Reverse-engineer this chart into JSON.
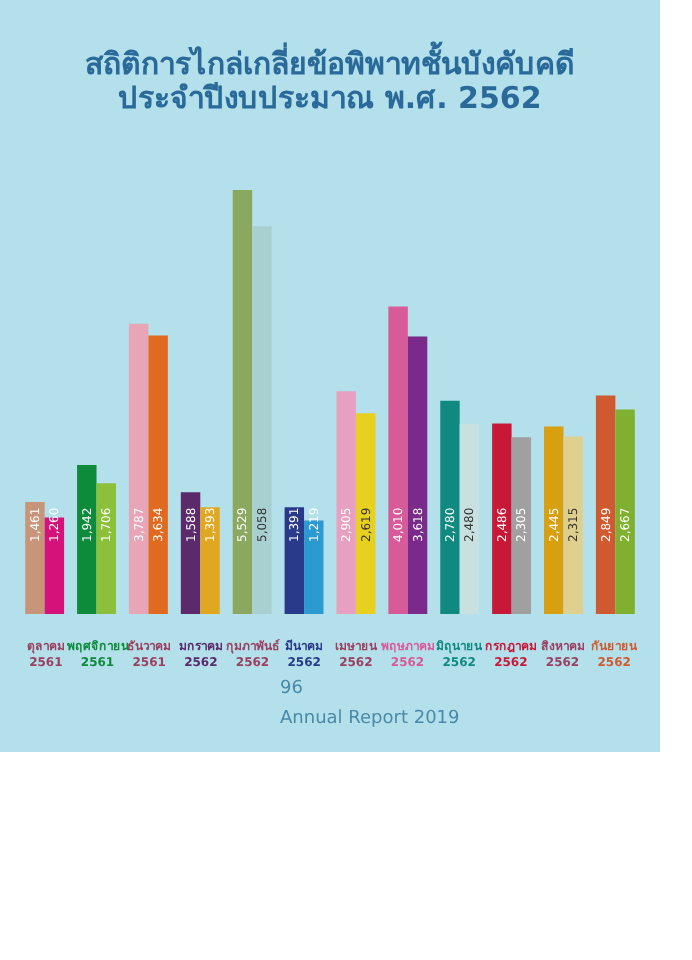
{
  "chart_data": {
    "type": "bar",
    "title": [
      "สถิติการไกล่เกลี่ยข้อพิพาทชั้นบังคับคดี",
      "ประจำปีงบประมาณ พ.ศ. 2562"
    ],
    "categories": [
      "ตุลาคม 2561",
      "พฤศจิกายน 2561",
      "ธันวาคม 2561",
      "มกราคม 2562",
      "กุมภาพันธ์ 2562",
      "มีนาคม 2562",
      "เมษายน 2562",
      "พฤษภาคม 2562",
      "มิถุนายน 2562",
      "กรกฎาคม 2562",
      "สิงหาคม 2562",
      "กันยายน 2562"
    ],
    "series": [
      {
        "colors": [
          "#c8957a",
          "#0d8a3a",
          "#e8a5b5",
          "#5a2a6a",
          "#8aa860",
          "#2a3a8a",
          "#e8a0c0",
          "#d85a98",
          "#108a80",
          "#c81838",
          "#d8a010",
          "#d05a30"
        ],
        "values": [
          1461,
          1942,
          3787,
          1588,
          5529,
          1391,
          2905,
          4010,
          2780,
          2486,
          2445,
          2849
        ],
        "value_labels": [
          "1,461",
          "1,942",
          "3,787",
          "1,588",
          "5,529",
          "1,391",
          "2,905",
          "4,010",
          "2,780",
          "2,486",
          "2,445",
          "2,849"
        ]
      },
      {
        "colors": [
          "#d4127a",
          "#8cbf3a",
          "#e06a20",
          "#e0a820",
          "#a8d0d0",
          "#2a9ad0",
          "#e8d020",
          "#7a2a8a",
          "#c8e0e0",
          "#a0a0a0",
          "#e0d090",
          "#80b030"
        ],
        "values": [
          1260,
          1706,
          3634,
          1393,
          5058,
          1219,
          2619,
          3618,
          2480,
          2305,
          2315,
          2667
        ],
        "value_labels": [
          "1,260",
          "1,706",
          "3,634",
          "1,393",
          "5,058",
          "1,219",
          "2,619",
          "3,618",
          "2,480",
          "2,305",
          "2,315",
          "2,667"
        ]
      }
    ],
    "tick_labels": "x",
    "annotations": [
      "96",
      "Annual Report 2019"
    ]
  }
}
